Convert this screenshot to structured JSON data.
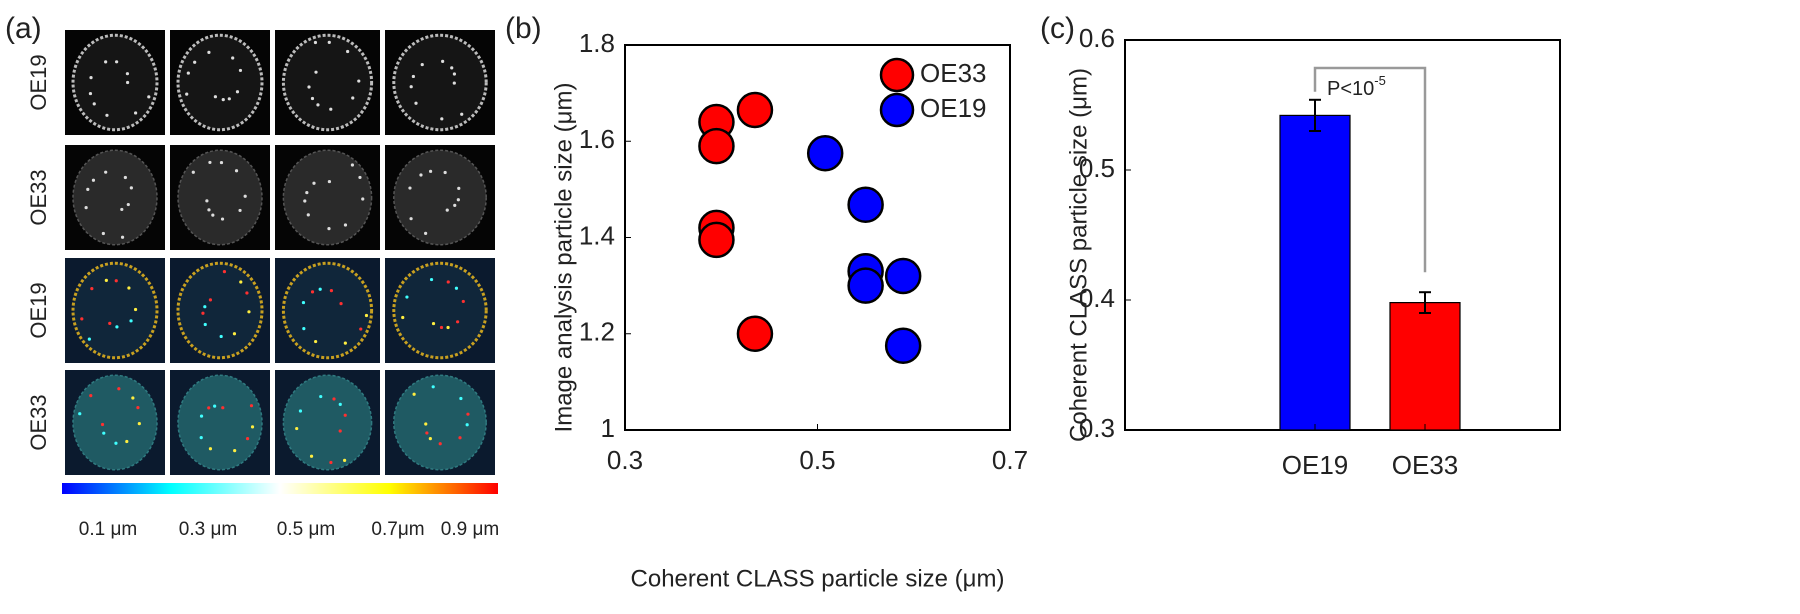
{
  "image_panel": {
    "panel_label": "(a)",
    "row_labels": [
      "OE19",
      "OE33",
      "OE19",
      "OE33"
    ],
    "colorbar_labels": [
      "0.1 μm",
      "0.3 μm",
      "0.5 μm",
      "0.7μm",
      "0.9 μm"
    ]
  },
  "chart_data": [
    {
      "type": "scatter",
      "panel_label": "(b)",
      "x_label": "Coherent CLASS particle size (μm)",
      "y_label": "Image analysis particle size (μm)",
      "xlim": [
        0.3,
        0.7
      ],
      "xticks": [
        0.3,
        0.5,
        0.7
      ],
      "ylim": [
        1,
        1.8
      ],
      "yticks": [
        1,
        1.2,
        1.4,
        1.6,
        1.8
      ],
      "legend": "top-right",
      "series": [
        {
          "name": "OE33",
          "color": "#ff0000",
          "x": [
            0.395,
            0.395,
            0.395,
            0.395,
            0.435,
            0.435
          ],
          "values": [
            1.64,
            1.59,
            1.42,
            1.395,
            1.665,
            1.2
          ]
        },
        {
          "name": "OE19",
          "color": "#0000ff",
          "x": [
            0.508,
            0.55,
            0.55,
            0.55,
            0.589,
            0.589
          ],
          "values": [
            1.575,
            1.468,
            1.33,
            1.3,
            1.32,
            1.175
          ]
        }
      ]
    },
    {
      "type": "bar",
      "panel_label": "(c)",
      "y_label": "Coherent CLASS particle size (μm)",
      "categories": [
        "OE19",
        "OE33"
      ],
      "values": [
        0.542,
        0.398
      ],
      "errors": [
        0.012,
        0.008
      ],
      "colors": [
        "#0000ff",
        "#ff0000"
      ],
      "ylim": [
        0.3,
        0.6
      ],
      "yticks": [
        0.3,
        0.4,
        0.5,
        0.6
      ],
      "annotation": {
        "text": "P<10",
        "superscript": "-5"
      }
    }
  ]
}
